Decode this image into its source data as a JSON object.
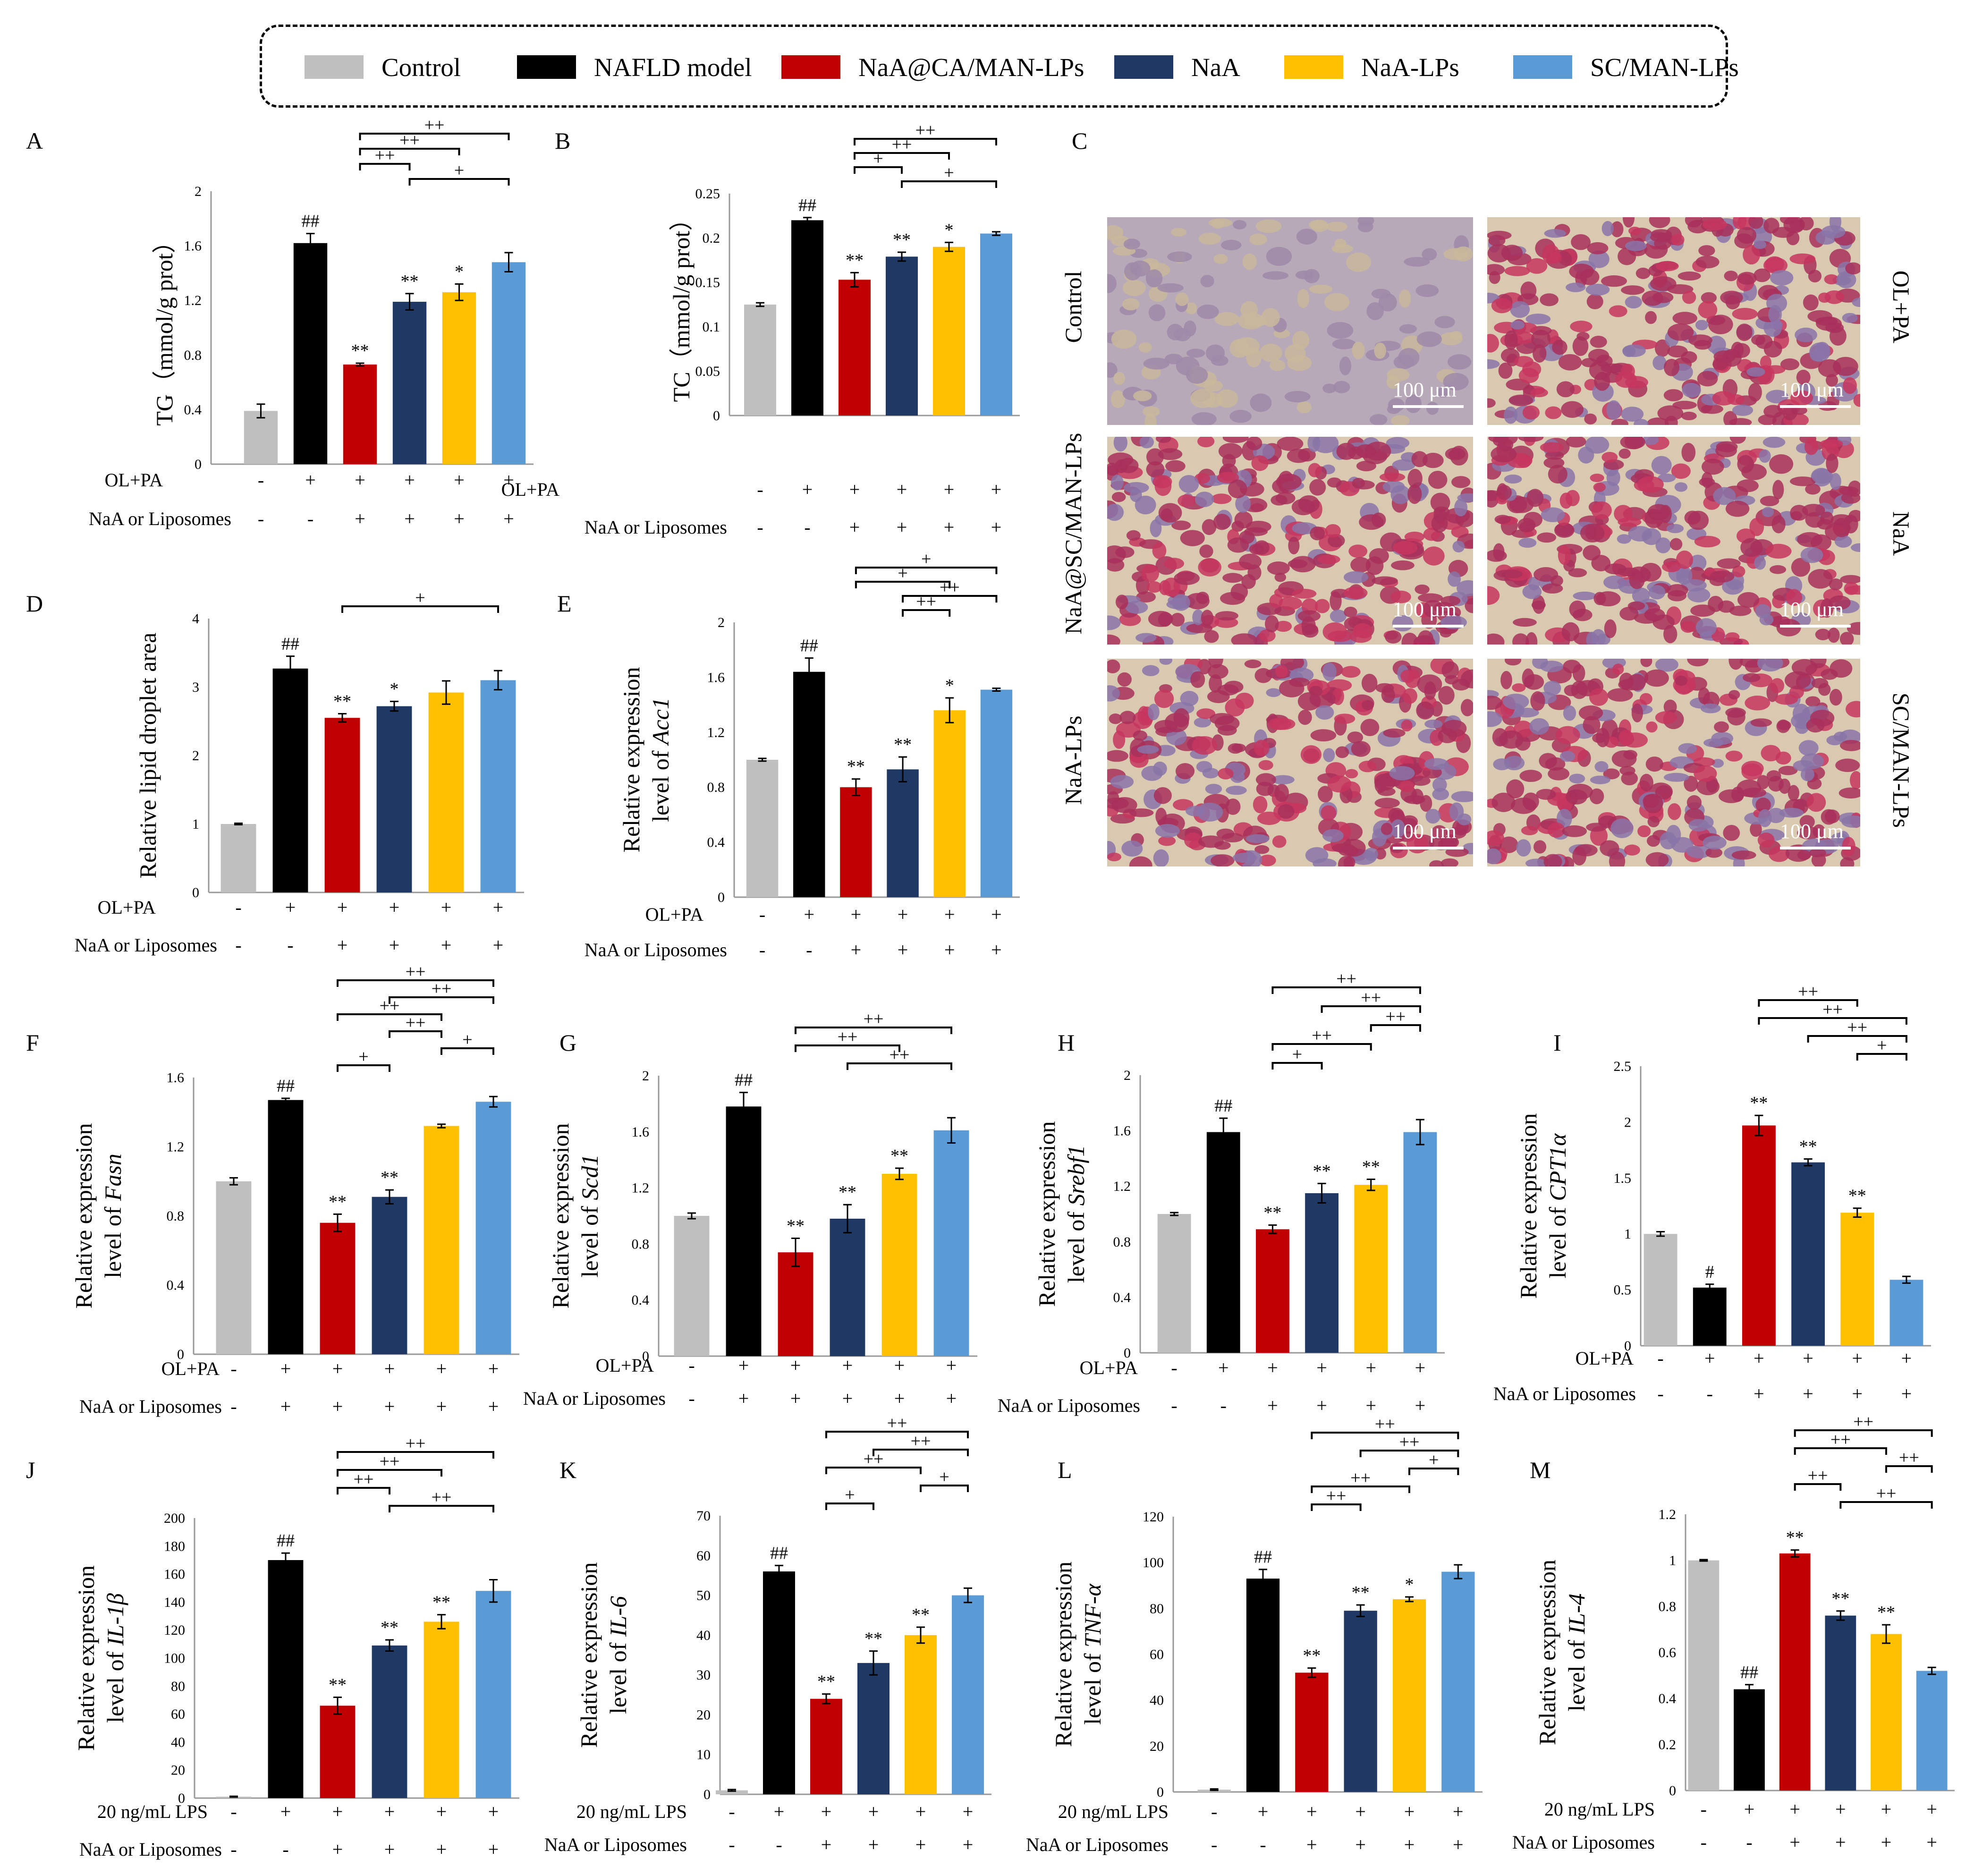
{
  "legend": [
    {
      "label": "Control",
      "color": "#bfbfbf"
    },
    {
      "label": "NAFLD model",
      "color": "#000000"
    },
    {
      "label": "NaA@CA/MAN-LPs",
      "color": "#c00000"
    },
    {
      "label": "NaA",
      "color": "#1f3864"
    },
    {
      "label": "NaA-LPs",
      "color": "#ffc000"
    },
    {
      "label": "SC/MAN-LPs",
      "color": "#5b9bd5"
    }
  ],
  "microscopy": {
    "panel_letter": "C",
    "panels": [
      {
        "label": "Control",
        "scale": "100 μm"
      },
      {
        "label": "OL+PA",
        "scale": "100 μm"
      },
      {
        "label": "NaA@SC/MAN-LPs",
        "scale": "100 μm"
      },
      {
        "label": "NaA",
        "scale": "100 μm"
      },
      {
        "label": "NaA-LPs",
        "scale": "100 μm"
      },
      {
        "label": "SC/MAN-LPs",
        "scale": "100 μm"
      }
    ]
  },
  "chart_data": [
    {
      "id": "A",
      "type": "bar",
      "title": "",
      "ylabel": [
        "TG（mmol/g prot）"
      ],
      "yticks": [
        "0",
        "0.4",
        "0.8",
        "1.2",
        "1.6",
        "2"
      ],
      "ylim": [
        0,
        2
      ],
      "categories": [
        "Control",
        "NAFLD model",
        "NaA@CA/MAN-LPs",
        "NaA",
        "NaA-LPs",
        "SC/MAN-LPs"
      ],
      "values": [
        0.39,
        1.62,
        0.73,
        1.19,
        1.26,
        1.48
      ],
      "errors": [
        0.05,
        0.07,
        0.01,
        0.06,
        0.06,
        0.07
      ],
      "bar_labels": [
        "",
        "##",
        "**",
        "**",
        "*",
        ""
      ],
      "brackets": [
        [
          2,
          5,
          "++"
        ],
        [
          2,
          4,
          "++"
        ],
        [
          2,
          3,
          "++"
        ],
        [
          3,
          5,
          "+"
        ]
      ],
      "treatment_rows": [
        {
          "label": "OL+PA",
          "signs": [
            "-",
            "+",
            "+",
            "+",
            "+",
            "+"
          ]
        },
        {
          "label": "NaA or Liposomes",
          "signs": [
            "-",
            "-",
            "+",
            "+",
            "+",
            "+"
          ]
        }
      ]
    },
    {
      "id": "B",
      "type": "bar",
      "title": "",
      "ylabel": [
        "TC（mmol/g prot）"
      ],
      "yticks": [
        "0",
        "0.05",
        "0.1",
        "0.15",
        "0.2",
        "0.25"
      ],
      "ylim": [
        0,
        0.25
      ],
      "categories": [
        "Control",
        "NAFLD model",
        "NaA@CA/MAN-LPs",
        "NaA",
        "NaA-LPs",
        "SC/MAN-LPs"
      ],
      "values": [
        0.125,
        0.22,
        0.153,
        0.179,
        0.19,
        0.205
      ],
      "errors": [
        0.002,
        0.003,
        0.008,
        0.005,
        0.005,
        0.002
      ],
      "bar_labels": [
        "",
        "##",
        "**",
        "**",
        "*",
        ""
      ],
      "brackets": [
        [
          2,
          5,
          "++"
        ],
        [
          2,
          4,
          "++"
        ],
        [
          2,
          3,
          "+"
        ],
        [
          3,
          5,
          "+"
        ]
      ],
      "treatment_rows": [
        {
          "label": "OL+PA",
          "signs": [
            "-",
            "+",
            "+",
            "+",
            "+",
            "+"
          ]
        },
        {
          "label": "NaA or Liposomes",
          "signs": [
            "-",
            "-",
            "+",
            "+",
            "+",
            "+"
          ]
        }
      ]
    },
    {
      "id": "D",
      "type": "bar",
      "title": "",
      "ylabel": [
        "Relative lipid droplet area"
      ],
      "yticks": [
        "0",
        "1",
        "2",
        "3",
        "4"
      ],
      "ylim": [
        0,
        4
      ],
      "categories": [
        "Control",
        "NAFLD model",
        "NaA@CA/MAN-LPs",
        "NaA",
        "NaA-LPs",
        "SC/MAN-LPs"
      ],
      "values": [
        1.0,
        3.27,
        2.55,
        2.72,
        2.92,
        3.1
      ],
      "errors": [
        0.01,
        0.18,
        0.06,
        0.07,
        0.17,
        0.14
      ],
      "bar_labels": [
        "",
        "##",
        "**",
        "*",
        "",
        ""
      ],
      "brackets": [
        [
          2,
          5,
          "+"
        ]
      ],
      "treatment_rows": [
        {
          "label": "OL+PA",
          "signs": [
            "-",
            "+",
            "+",
            "+",
            "+",
            "+"
          ]
        },
        {
          "label": "NaA or Liposomes",
          "signs": [
            "-",
            "-",
            "+",
            "+",
            "+",
            "+"
          ]
        }
      ]
    },
    {
      "id": "E",
      "type": "bar",
      "title": "",
      "ylabel": [
        "Relative expression",
        "level of Acc1"
      ],
      "yticks": [
        "0",
        "0.4",
        "0.8",
        "1.2",
        "1.6",
        "2"
      ],
      "ylim": [
        0,
        2
      ],
      "categories": [
        "Control",
        "NAFLD model",
        "NaA@CA/MAN-LPs",
        "NaA",
        "NaA-LPs",
        "SC/MAN-LPs"
      ],
      "values": [
        1.0,
        1.64,
        0.8,
        0.93,
        1.36,
        1.51
      ],
      "errors": [
        0.01,
        0.1,
        0.06,
        0.09,
        0.09,
        0.01
      ],
      "bar_labels": [
        "",
        "##",
        "**",
        "**",
        "*",
        ""
      ],
      "brackets": [
        [
          2,
          5,
          "+"
        ],
        [
          2,
          4,
          "+"
        ],
        [
          3,
          5,
          "++"
        ],
        [
          3,
          4,
          "++"
        ]
      ],
      "treatment_rows": [
        {
          "label": "OL+PA",
          "signs": [
            "-",
            "+",
            "+",
            "+",
            "+",
            "+"
          ]
        },
        {
          "label": "NaA or Liposomes",
          "signs": [
            "-",
            "-",
            "+",
            "+",
            "+",
            "+"
          ]
        }
      ]
    },
    {
      "id": "F",
      "type": "bar",
      "title": "",
      "ylabel": [
        "Relative expression",
        "level of Fasn"
      ],
      "yticks": [
        "0",
        "0.4",
        "0.8",
        "1.2",
        "1.6"
      ],
      "ylim": [
        0,
        1.6
      ],
      "categories": [
        "Control",
        "NAFLD model",
        "NaA@CA/MAN-LPs",
        "NaA",
        "NaA-LPs",
        "SC/MAN-LPs"
      ],
      "values": [
        1.0,
        1.47,
        0.76,
        0.91,
        1.32,
        1.46
      ],
      "errors": [
        0.02,
        0.01,
        0.05,
        0.04,
        0.01,
        0.03
      ],
      "bar_labels": [
        "",
        "##",
        "**",
        "**",
        "",
        ""
      ],
      "brackets": [
        [
          2,
          5,
          "++"
        ],
        [
          3,
          5,
          "++"
        ],
        [
          2,
          4,
          "++"
        ],
        [
          3,
          4,
          "++"
        ],
        [
          4,
          5,
          "+"
        ],
        [
          2,
          3,
          "+"
        ]
      ],
      "treatment_rows": [
        {
          "label": "OL+PA",
          "signs": [
            "-",
            "+",
            "+",
            "+",
            "+",
            "+"
          ]
        },
        {
          "label": "NaA or Liposomes",
          "signs": [
            "-",
            "+",
            "+",
            "+",
            "+",
            "+"
          ]
        }
      ]
    },
    {
      "id": "G",
      "type": "bar",
      "title": "",
      "ylabel": [
        "Relative expression",
        "level of Scd1"
      ],
      "yticks": [
        "0",
        "0.4",
        "0.8",
        "1.2",
        "1.6",
        "2"
      ],
      "ylim": [
        0,
        2
      ],
      "categories": [
        "Control",
        "NAFLD model",
        "NaA@CA/MAN-LPs",
        "NaA",
        "NaA-LPs",
        "SC/MAN-LPs"
      ],
      "values": [
        1.0,
        1.78,
        0.74,
        0.98,
        1.3,
        1.61
      ],
      "errors": [
        0.02,
        0.1,
        0.1,
        0.1,
        0.04,
        0.09
      ],
      "bar_labels": [
        "",
        "##",
        "**",
        "**",
        "**",
        ""
      ],
      "brackets": [
        [
          2,
          5,
          "++"
        ],
        [
          2,
          4,
          "++"
        ],
        [
          3,
          5,
          "++"
        ]
      ],
      "treatment_rows": [
        {
          "label": "OL+PA",
          "signs": [
            "-",
            "+",
            "+",
            "+",
            "+",
            "+"
          ]
        },
        {
          "label": "NaA or Liposomes",
          "signs": [
            "-",
            "+",
            "+",
            "+",
            "+",
            "+"
          ]
        }
      ]
    },
    {
      "id": "H",
      "type": "bar",
      "title": "",
      "ylabel": [
        "Relative expression",
        "level of Srebf1"
      ],
      "yticks": [
        "0",
        "0.4",
        "0.8",
        "1.2",
        "1.6",
        "2"
      ],
      "ylim": [
        0,
        2
      ],
      "categories": [
        "Control",
        "NAFLD model",
        "NaA@CA/MAN-LPs",
        "NaA",
        "NaA-LPs",
        "SC/MAN-LPs"
      ],
      "values": [
        1.0,
        1.59,
        0.89,
        1.15,
        1.21,
        1.59
      ],
      "errors": [
        0.01,
        0.1,
        0.03,
        0.07,
        0.04,
        0.09
      ],
      "bar_labels": [
        "",
        "##",
        "**",
        "**",
        "**",
        ""
      ],
      "brackets": [
        [
          2,
          5,
          "++"
        ],
        [
          3,
          5,
          "++"
        ],
        [
          4,
          5,
          "++"
        ],
        [
          2,
          4,
          "++"
        ],
        [
          2,
          3,
          "+"
        ]
      ],
      "treatment_rows": [
        {
          "label": "OL+PA",
          "signs": [
            "-",
            "+",
            "+",
            "+",
            "+",
            "+"
          ]
        },
        {
          "label": "NaA or Liposomes",
          "signs": [
            "-",
            "-",
            "+",
            "+",
            "+",
            "+"
          ]
        }
      ]
    },
    {
      "id": "I",
      "type": "bar",
      "title": "",
      "ylabel": [
        "Relative expression",
        "level of CPT1α"
      ],
      "yticks": [
        "0",
        "0.5",
        "1",
        "1.5",
        "2",
        "2.5"
      ],
      "ylim": [
        0,
        2.5
      ],
      "categories": [
        "Control",
        "NAFLD model",
        "NaA@CA/MAN-LPs",
        "NaA",
        "NaA-LPs",
        "SC/MAN-LPs"
      ],
      "values": [
        1.0,
        0.52,
        1.97,
        1.64,
        1.19,
        0.59
      ],
      "errors": [
        0.02,
        0.03,
        0.09,
        0.03,
        0.04,
        0.03
      ],
      "bar_labels": [
        "",
        "#",
        "**",
        "**",
        "**",
        ""
      ],
      "brackets": [
        [
          2,
          4,
          "++"
        ],
        [
          2,
          5,
          "++"
        ],
        [
          3,
          5,
          "++"
        ],
        [
          4,
          5,
          "+"
        ]
      ],
      "treatment_rows": [
        {
          "label": "OL+PA",
          "signs": [
            "-",
            "+",
            "+",
            "+",
            "+",
            "+"
          ]
        },
        {
          "label": "NaA or Liposomes",
          "signs": [
            "-",
            "-",
            "+",
            "+",
            "+",
            "+"
          ]
        }
      ]
    },
    {
      "id": "J",
      "type": "bar",
      "title": "",
      "ylabel": [
        "Relative expression",
        "level of IL-1β"
      ],
      "yticks": [
        "0",
        "20",
        "40",
        "60",
        "80",
        "100",
        "120",
        "140",
        "160",
        "180",
        "200"
      ],
      "ylim": [
        0,
        200
      ],
      "categories": [
        "Control",
        "NAFLD model",
        "NaA@CA/MAN-LPs",
        "NaA",
        "NaA-LPs",
        "SC/MAN-LPs"
      ],
      "values": [
        1.0,
        170,
        66,
        109,
        126,
        148
      ],
      "errors": [
        0.3,
        5,
        6,
        4,
        5,
        8
      ],
      "bar_labels": [
        "",
        "##",
        "**",
        "**",
        "**",
        ""
      ],
      "brackets": [
        [
          2,
          5,
          "++"
        ],
        [
          2,
          4,
          "++"
        ],
        [
          2,
          3,
          "++"
        ],
        [
          3,
          5,
          "++"
        ]
      ],
      "treatment_rows": [
        {
          "label": "20 ng/mL LPS",
          "signs": [
            "-",
            "+",
            "+",
            "+",
            "+",
            "+"
          ]
        },
        {
          "label": "NaA or Liposomes",
          "signs": [
            "-",
            "-",
            "+",
            "+",
            "+",
            "+"
          ]
        }
      ]
    },
    {
      "id": "K",
      "type": "bar",
      "title": "",
      "ylabel": [
        "Relative expression",
        "level of IL-6"
      ],
      "yticks": [
        "0",
        "10",
        "20",
        "30",
        "40",
        "50",
        "60",
        "70"
      ],
      "ylim": [
        0,
        70
      ],
      "categories": [
        "Control",
        "NAFLD model",
        "NaA@CA/MAN-LPs",
        "NaA",
        "NaA-LPs",
        "SC/MAN-LPs"
      ],
      "values": [
        1.0,
        56,
        24,
        33,
        40,
        50
      ],
      "errors": [
        0.2,
        1.5,
        1.2,
        3,
        2,
        1.8
      ],
      "bar_labels": [
        "",
        "##",
        "**",
        "**",
        "**",
        ""
      ],
      "brackets": [
        [
          2,
          5,
          "++"
        ],
        [
          3,
          5,
          "++"
        ],
        [
          2,
          4,
          "++"
        ],
        [
          4,
          5,
          "+"
        ],
        [
          2,
          3,
          "+"
        ]
      ],
      "treatment_rows": [
        {
          "label": "20 ng/mL LPS",
          "signs": [
            "-",
            "+",
            "+",
            "+",
            "+",
            "+"
          ]
        },
        {
          "label": "NaA or Liposomes",
          "signs": [
            "-",
            "-",
            "+",
            "+",
            "+",
            "+"
          ]
        }
      ]
    },
    {
      "id": "L",
      "type": "bar",
      "title": "",
      "ylabel": [
        "Relative expression",
        "level of TNF-α"
      ],
      "yticks": [
        "0",
        "20",
        "40",
        "60",
        "80",
        "100",
        "120"
      ],
      "ylim": [
        0,
        120
      ],
      "categories": [
        "Control",
        "NAFLD model",
        "NaA@CA/MAN-LPs",
        "NaA",
        "NaA-LPs",
        "SC/MAN-LPs"
      ],
      "values": [
        1.0,
        93,
        52,
        79,
        84,
        96
      ],
      "errors": [
        0.3,
        4,
        2,
        2.5,
        1,
        3
      ],
      "bar_labels": [
        "",
        "##",
        "**",
        "**",
        "*",
        ""
      ],
      "brackets": [
        [
          2,
          5,
          "++"
        ],
        [
          3,
          5,
          "++"
        ],
        [
          4,
          5,
          "+"
        ],
        [
          2,
          4,
          "++"
        ],
        [
          2,
          3,
          "++"
        ]
      ],
      "treatment_rows": [
        {
          "label": "20 ng/mL LPS",
          "signs": [
            "-",
            "+",
            "+",
            "+",
            "+",
            "+"
          ]
        },
        {
          "label": "NaA or Liposomes",
          "signs": [
            "-",
            "-",
            "+",
            "+",
            "+",
            "+"
          ]
        }
      ]
    },
    {
      "id": "M",
      "type": "bar",
      "title": "",
      "ylabel": [
        "Relative expression",
        "level of IL-4"
      ],
      "yticks": [
        "0",
        "0.2",
        "0.4",
        "0.6",
        "0.8",
        "1",
        "1.2"
      ],
      "ylim": [
        0,
        1.2
      ],
      "categories": [
        "Control",
        "NAFLD model",
        "NaA@CA/MAN-LPs",
        "NaA",
        "NaA-LPs",
        "SC/MAN-LPs"
      ],
      "values": [
        1.0,
        0.44,
        1.03,
        0.76,
        0.68,
        0.52
      ],
      "errors": [
        0.003,
        0.02,
        0.015,
        0.02,
        0.04,
        0.015
      ],
      "bar_labels": [
        "",
        "##",
        "**",
        "**",
        "**",
        ""
      ],
      "brackets": [
        [
          2,
          5,
          "++"
        ],
        [
          2,
          4,
          "++"
        ],
        [
          4,
          5,
          "++"
        ],
        [
          2,
          3,
          "++"
        ],
        [
          3,
          5,
          "++"
        ]
      ],
      "treatment_rows": [
        {
          "label": "20 ng/mL LPS",
          "signs": [
            "-",
            "+",
            "+",
            "+",
            "+",
            "+"
          ]
        },
        {
          "label": "NaA or Liposomes",
          "signs": [
            "-",
            "-",
            "+",
            "+",
            "+",
            "+"
          ]
        }
      ]
    }
  ]
}
